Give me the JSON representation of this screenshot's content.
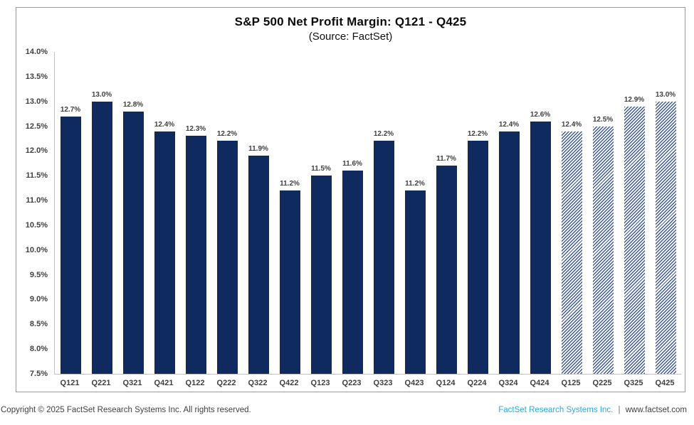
{
  "chart_data": {
    "type": "bar",
    "title": "S&P 500 Net Profit Margin: Q121 - Q425",
    "subtitle": "(Source: FactSet)",
    "xlabel": "",
    "ylabel": "",
    "categories": [
      "Q121",
      "Q221",
      "Q321",
      "Q421",
      "Q122",
      "Q222",
      "Q322",
      "Q422",
      "Q123",
      "Q223",
      "Q323",
      "Q423",
      "Q124",
      "Q224",
      "Q324",
      "Q424",
      "Q125",
      "Q225",
      "Q325",
      "Q425"
    ],
    "values": [
      12.7,
      13.0,
      12.8,
      12.4,
      12.3,
      12.2,
      11.9,
      11.2,
      11.5,
      11.6,
      12.2,
      11.2,
      11.7,
      12.2,
      12.4,
      12.6,
      12.4,
      12.5,
      12.9,
      13.0
    ],
    "data_labels": [
      "12.7%",
      "13.0%",
      "12.8%",
      "12.4%",
      "12.3%",
      "12.2%",
      "11.9%",
      "11.2%",
      "11.5%",
      "11.6%",
      "12.2%",
      "11.2%",
      "11.7%",
      "12.2%",
      "12.4%",
      "12.6%",
      "12.4%",
      "12.5%",
      "12.9%",
      "13.0%"
    ],
    "estimated": [
      false,
      false,
      false,
      false,
      false,
      false,
      false,
      false,
      false,
      false,
      false,
      false,
      false,
      false,
      false,
      false,
      true,
      true,
      true,
      true
    ],
    "ylim": [
      7.5,
      14.0
    ],
    "ytick_step": 0.5,
    "ytick_labels": [
      "14.0%",
      "13.5%",
      "13.0%",
      "12.5%",
      "12.0%",
      "11.5%",
      "11.0%",
      "10.5%",
      "10.0%",
      "9.5%",
      "9.0%",
      "8.5%",
      "8.0%",
      "7.5%"
    ],
    "grid": false,
    "legend_position": "none",
    "bar_color": "#0f2a5f",
    "estimate_hatch_color": "#3e5a98"
  },
  "footer": {
    "copyright": "Copyright © 2025 FactSet Research Systems Inc. All rights reserved.",
    "brand_link": "FactSet Research Systems Inc.",
    "separator": "|",
    "website": "www.factset.com",
    "brand_color": "#29abe2"
  }
}
